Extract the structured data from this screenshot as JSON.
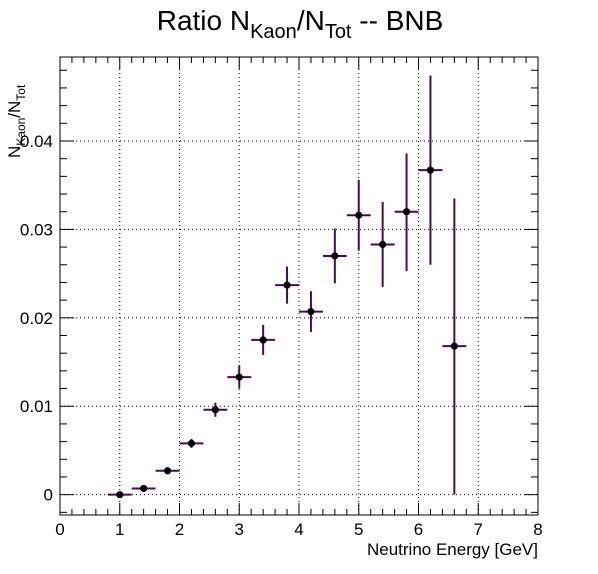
{
  "chart_data": {
    "type": "scatter",
    "title": {
      "main": "Ratio N",
      "sub1": "Kaon",
      "mid": "/N",
      "sub2": "Tot",
      "tail": " -- BNB"
    },
    "xlabel": "Neutrino Energy [GeV]",
    "ylabel": {
      "main1": "N",
      "sub1": "Kaon",
      "mid": "/N",
      "sub2": "Tot"
    },
    "xlim": [
      0,
      8
    ],
    "ylim": [
      -0.0023,
      0.0495
    ],
    "x_ticks": [
      0,
      1,
      2,
      3,
      4,
      5,
      6,
      7,
      8
    ],
    "x_tick_labels": [
      "0",
      "1",
      "2",
      "3",
      "4",
      "5",
      "6",
      "7",
      "8"
    ],
    "y_ticks": [
      0,
      0.01,
      0.02,
      0.03,
      0.04
    ],
    "y_tick_labels": [
      "0",
      "0.01",
      "0.02",
      "0.03",
      "0.04"
    ],
    "grid": true,
    "marker_color": "#000000",
    "error_bar_color": "#4b0a4f",
    "series": [
      {
        "x": [
          1.0,
          1.4,
          1.8,
          2.2,
          2.6,
          3.0,
          3.4,
          3.8,
          4.2,
          4.6,
          5.0,
          5.4,
          5.8,
          6.2,
          6.6
        ],
        "x_err": [
          0.2,
          0.2,
          0.2,
          0.2,
          0.2,
          0.2,
          0.2,
          0.2,
          0.2,
          0.2,
          0.2,
          0.2,
          0.2,
          0.2,
          0.2
        ],
        "y": [
          0.0,
          0.0007,
          0.0027,
          0.0058,
          0.0096,
          0.0133,
          0.0175,
          0.0237,
          0.0207,
          0.027,
          0.0316,
          0.0283,
          0.032,
          0.0367,
          0.0168
        ],
        "y_err_lo": [
          0.0001,
          0.0002,
          0.0004,
          0.0005,
          0.0008,
          0.0013,
          0.0017,
          0.0021,
          0.0023,
          0.0031,
          0.004,
          0.0048,
          0.0067,
          0.0107,
          0.0168
        ],
        "y_err_hi": [
          0.0001,
          0.0002,
          0.0004,
          0.0005,
          0.0008,
          0.0013,
          0.0017,
          0.0021,
          0.0023,
          0.0031,
          0.004,
          0.0048,
          0.0066,
          0.0107,
          0.0167
        ]
      }
    ]
  }
}
